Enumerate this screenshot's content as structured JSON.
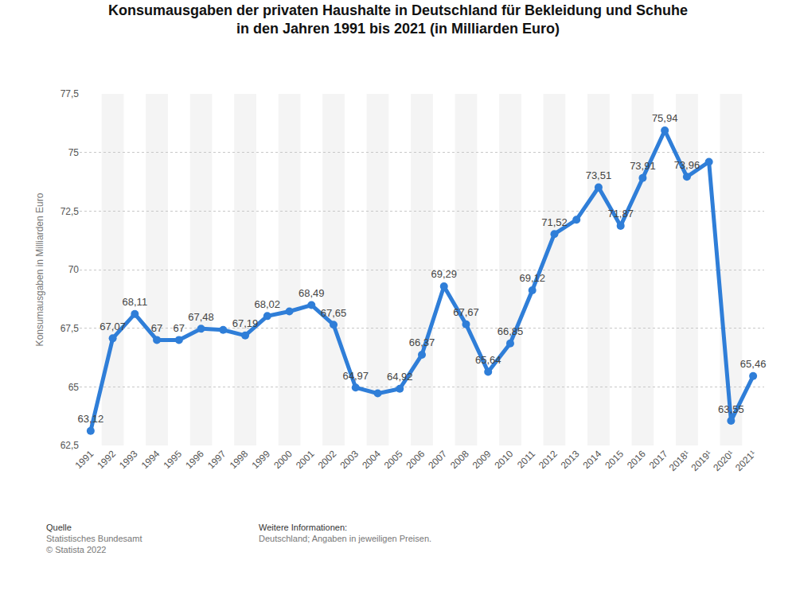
{
  "chart_data": {
    "type": "line",
    "title": "Konsumausgaben der privaten Haushalte in Deutschland für Bekleidung und Schuhe in den Jahren 1991 bis 2021 (in Milliarden Euro)",
    "y_label": "Konsumausgaben in Milliarden Euro",
    "categories": [
      "1991",
      "1992",
      "1993",
      "1994",
      "1995",
      "1996",
      "1997",
      "1998",
      "1999",
      "2000",
      "2001",
      "2002",
      "2003",
      "2004",
      "2005",
      "2006",
      "2007",
      "2008",
      "2009",
      "2010",
      "2011",
      "2012",
      "2013",
      "2014",
      "2015",
      "2016",
      "2017",
      "2018¹",
      "2019¹",
      "2020¹",
      "2021¹"
    ],
    "values": [
      63.12,
      67.07,
      68.11,
      67,
      67,
      67.48,
      67.43,
      67.19,
      68.02,
      68.22,
      68.49,
      67.65,
      64.97,
      64.72,
      64.92,
      66.37,
      69.29,
      67.67,
      65.64,
      66.85,
      69.12,
      71.52,
      72.13,
      73.51,
      71.87,
      73.91,
      75.94,
      73.96,
      74.6,
      63.55,
      65.46
    ],
    "value_labels": [
      "63,12",
      "67,07",
      "68,11",
      "67",
      "67",
      "67,48",
      null,
      "67,19",
      "68,02",
      null,
      "68,49",
      "67,65",
      "64,97",
      null,
      "64,92",
      "66,37",
      "69,29",
      "67,67",
      "65,64",
      "66,85",
      "69,12",
      "71,52",
      null,
      "73,51",
      "71,87",
      "73,91",
      "75,94",
      "73,96",
      null,
      "63,55",
      "65,46"
    ],
    "data_labels": true,
    "color": "#2f7ed8",
    "marker": "circle",
    "line_style": "solid",
    "ylim": [
      62.5,
      77.5
    ],
    "yticks": [
      {
        "value": 62.5,
        "label": "62,5"
      },
      65,
      {
        "value": 67.5,
        "label": "67,5"
      },
      70,
      {
        "value": 72.5,
        "label": "72,5"
      },
      75,
      {
        "value": 77.5,
        "label": "77,5"
      }
    ],
    "grid": true,
    "source": {
      "heading": "Quelle",
      "lines": [
        "Statistisches Bundesamt",
        "© Statista 2022"
      ]
    },
    "info": {
      "heading": "Weitere Informationen:",
      "lines": [
        "Deutschland; Angaben in jeweiligen Preisen."
      ]
    }
  }
}
